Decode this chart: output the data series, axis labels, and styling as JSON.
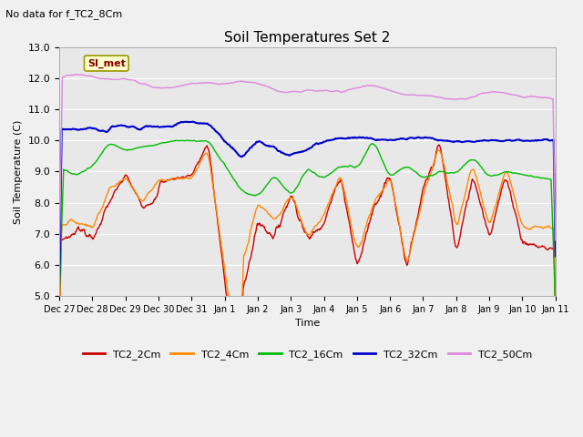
{
  "title": "Soil Temperatures Set 2",
  "subtitle": "No data for f_TC2_8Cm",
  "ylabel": "Soil Temperature (C)",
  "xlabel": "Time",
  "ylim": [
    5.0,
    13.0
  ],
  "yticks": [
    5.0,
    6.0,
    7.0,
    8.0,
    9.0,
    10.0,
    11.0,
    12.0,
    13.0
  ],
  "xtick_labels": [
    "Dec 27",
    "Dec 28",
    "Dec 29",
    "Dec 30",
    "Dec 31",
    "Jan 1",
    "Jan 2",
    "Jan 3",
    "Jan 4",
    "Jan 5",
    "Jan 6",
    "Jan 7",
    "Jan 8",
    "Jan 9",
    "Jan 10",
    "Jan 11"
  ],
  "colors": {
    "TC2_2Cm": "#cc0000",
    "TC2_4Cm": "#ff8800",
    "TC2_16Cm": "#00bb00",
    "TC2_32Cm": "#0000cc",
    "TC2_50Cm": "#dd88dd"
  },
  "legend_label": "SI_met",
  "legend_box_facecolor": "#ffffcc",
  "legend_box_edgecolor": "#999900",
  "plot_bg_color": "#e8e8e8",
  "fig_bg_color": "#f0f0f0",
  "grid_color": "#ffffff",
  "n_points": 800
}
